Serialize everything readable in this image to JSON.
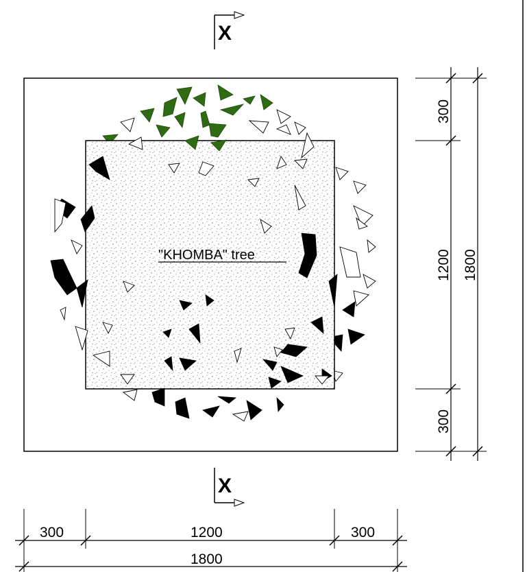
{
  "section_marks": {
    "top": "X",
    "bottom": "X"
  },
  "tree_label": "\"KHOMBA\" tree",
  "dimensions": {
    "right_top": "300",
    "right_middle": "1200",
    "right_bottom": "300",
    "right_total": "1800",
    "bottom_left": "300",
    "bottom_middle": "1200",
    "bottom_right": "300",
    "bottom_total": "1800"
  },
  "colors": {
    "foliage_green": "#2e6b12",
    "foliage_black": "#000000",
    "outline": "#000000",
    "fill_texture": "#888888"
  }
}
